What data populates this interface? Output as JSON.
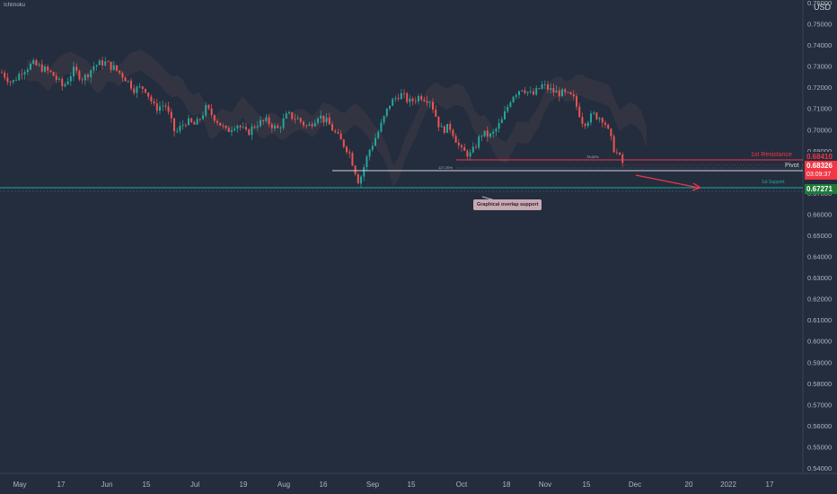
{
  "indicator_label": "Ichimoku",
  "currency": "USD",
  "callout": "Graphical overlap support",
  "levels": {
    "resistance": {
      "label": "1st Resistance",
      "price": "0.68410",
      "color": "#f23645"
    },
    "pivot": {
      "label": "Pivot",
      "color": "#d1d4dc"
    },
    "support": {
      "label": "1st Support",
      "price": "0.67271",
      "color": "#22ab94"
    }
  },
  "fib_labels": {
    "retracement": "78.60%",
    "extension": "127.20%"
  },
  "current_price": {
    "value": "0.68326",
    "countdown": "03:09:37",
    "color": "#f23645"
  },
  "chart_data": {
    "type": "line",
    "ylim": [
      0.535,
      0.768
    ],
    "y_ticks": [
      "0.76000",
      "0.75000",
      "0.74000",
      "0.73000",
      "0.72000",
      "0.71000",
      "0.70000",
      "0.69000",
      "0.68000",
      "0.67000",
      "0.66000",
      "0.65000",
      "0.64000",
      "0.63000",
      "0.62000",
      "0.61000",
      "0.60000",
      "0.59000",
      "0.58000",
      "0.57000",
      "0.56000",
      "0.55000",
      "0.54000"
    ],
    "x_ticks": [
      "May",
      "17",
      "Jun",
      "15",
      "Jul",
      "19",
      "Aug",
      "16",
      "Sep",
      "15",
      "Oct",
      "18",
      "Nov",
      "15",
      "Dec",
      "20",
      "2022",
      "17"
    ],
    "series": [
      {
        "values": [
          0.727,
          0.722,
          0.728,
          0.731,
          0.729,
          0.726,
          0.72,
          0.728,
          0.724,
          0.73,
          0.732,
          0.729,
          0.725,
          0.719,
          0.72,
          0.71,
          0.712,
          0.698,
          0.704,
          0.702,
          0.71,
          0.705,
          0.699,
          0.703,
          0.698,
          0.703,
          0.704,
          0.7,
          0.707,
          0.705,
          0.701,
          0.707,
          0.703,
          0.696,
          0.69,
          0.675,
          0.69,
          0.7,
          0.712,
          0.717,
          0.713,
          0.716,
          0.714,
          0.7,
          0.701,
          0.69,
          0.688,
          0.698,
          0.697,
          0.704,
          0.716,
          0.72,
          0.716,
          0.721,
          0.718,
          0.717,
          0.715,
          0.703,
          0.707,
          0.705,
          0.691,
          0.683
        ]
      }
    ]
  }
}
